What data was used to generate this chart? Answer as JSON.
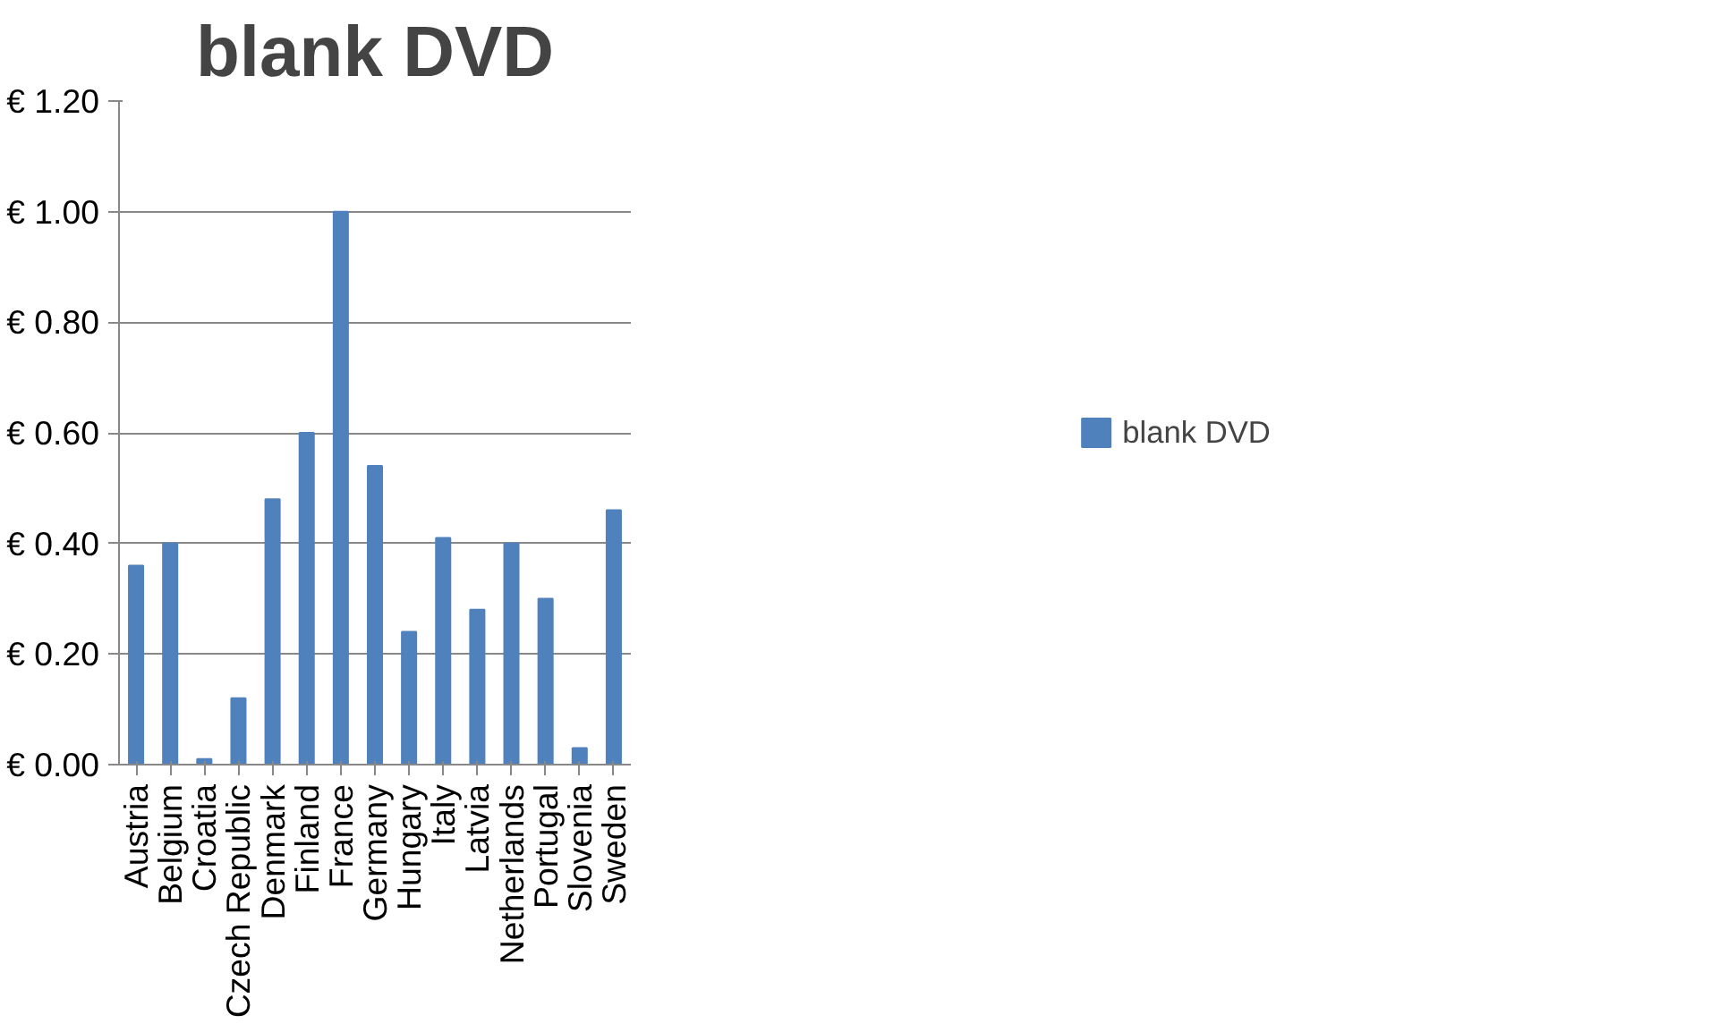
{
  "chart_data": {
    "type": "bar",
    "title": "blank DVD",
    "categories": [
      "Austria",
      "Belgium",
      "Croatia",
      "Czech Republic",
      "Denmark",
      "Finland",
      "France",
      "Germany",
      "Hungary",
      "Italy",
      "Latvia",
      "Netherlands",
      "Portugal",
      "Slovenia",
      "Sweden"
    ],
    "series": [
      {
        "name": "blank DVD",
        "color": "#4f81bd",
        "values": [
          0.36,
          0.4,
          0.01,
          0.12,
          0.48,
          0.6,
          1.0,
          0.54,
          0.24,
          0.41,
          0.28,
          0.4,
          0.3,
          0.03,
          0.46
        ]
      }
    ],
    "ylim": [
      0,
      1.2
    ],
    "yticks": [
      {
        "value": 0,
        "label": "€ 0.00"
      },
      {
        "value": 0.2,
        "label": "€ 0.20"
      },
      {
        "value": 0.4,
        "label": "€ 0.40"
      },
      {
        "value": 0.6,
        "label": "€ 0.60"
      },
      {
        "value": 0.8,
        "label": "€ 0.80"
      },
      {
        "value": 1.0,
        "label": "€ 1.00"
      },
      {
        "value": 1.2,
        "label": "€ 1.20"
      }
    ],
    "grid": "y",
    "legend": "right"
  }
}
